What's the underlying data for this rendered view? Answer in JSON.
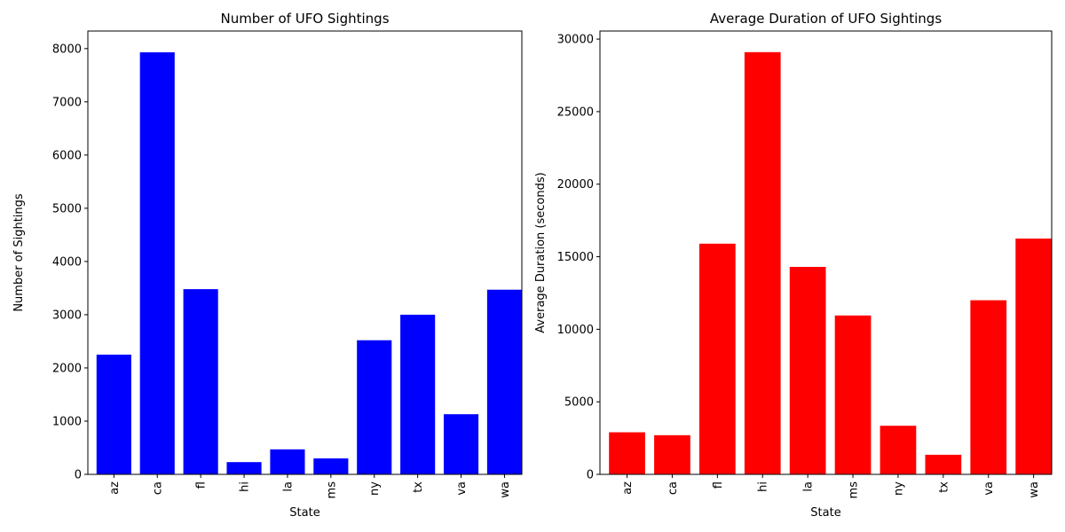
{
  "chart_data": [
    {
      "type": "bar",
      "title": "Number of UFO Sightings",
      "xlabel": "State",
      "ylabel": "Number of Sightings",
      "categories": [
        "az",
        "ca",
        "fl",
        "hi",
        "la",
        "ms",
        "ny",
        "tx",
        "va",
        "wa"
      ],
      "values": [
        2250,
        7930,
        3480,
        230,
        470,
        300,
        2520,
        3000,
        1130,
        3470
      ],
      "ylim": [
        0,
        8330
      ],
      "yticks": [
        0,
        1000,
        2000,
        3000,
        4000,
        5000,
        6000,
        7000,
        8000
      ],
      "bar_color": "#0000ff",
      "grid": false,
      "legend": "none"
    },
    {
      "type": "bar",
      "title": "Average Duration of UFO Sightings",
      "xlabel": "State",
      "ylabel": "Average Duration (seconds)",
      "categories": [
        "az",
        "ca",
        "fl",
        "hi",
        "la",
        "ms",
        "ny",
        "tx",
        "va",
        "wa"
      ],
      "values": [
        2900,
        2700,
        15900,
        29100,
        14300,
        10950,
        3350,
        1350,
        12000,
        16250
      ],
      "ylim": [
        0,
        30555
      ],
      "yticks": [
        0,
        5000,
        10000,
        15000,
        20000,
        25000,
        30000
      ],
      "bar_color": "#ff0000",
      "grid": false,
      "legend": "none"
    }
  ]
}
